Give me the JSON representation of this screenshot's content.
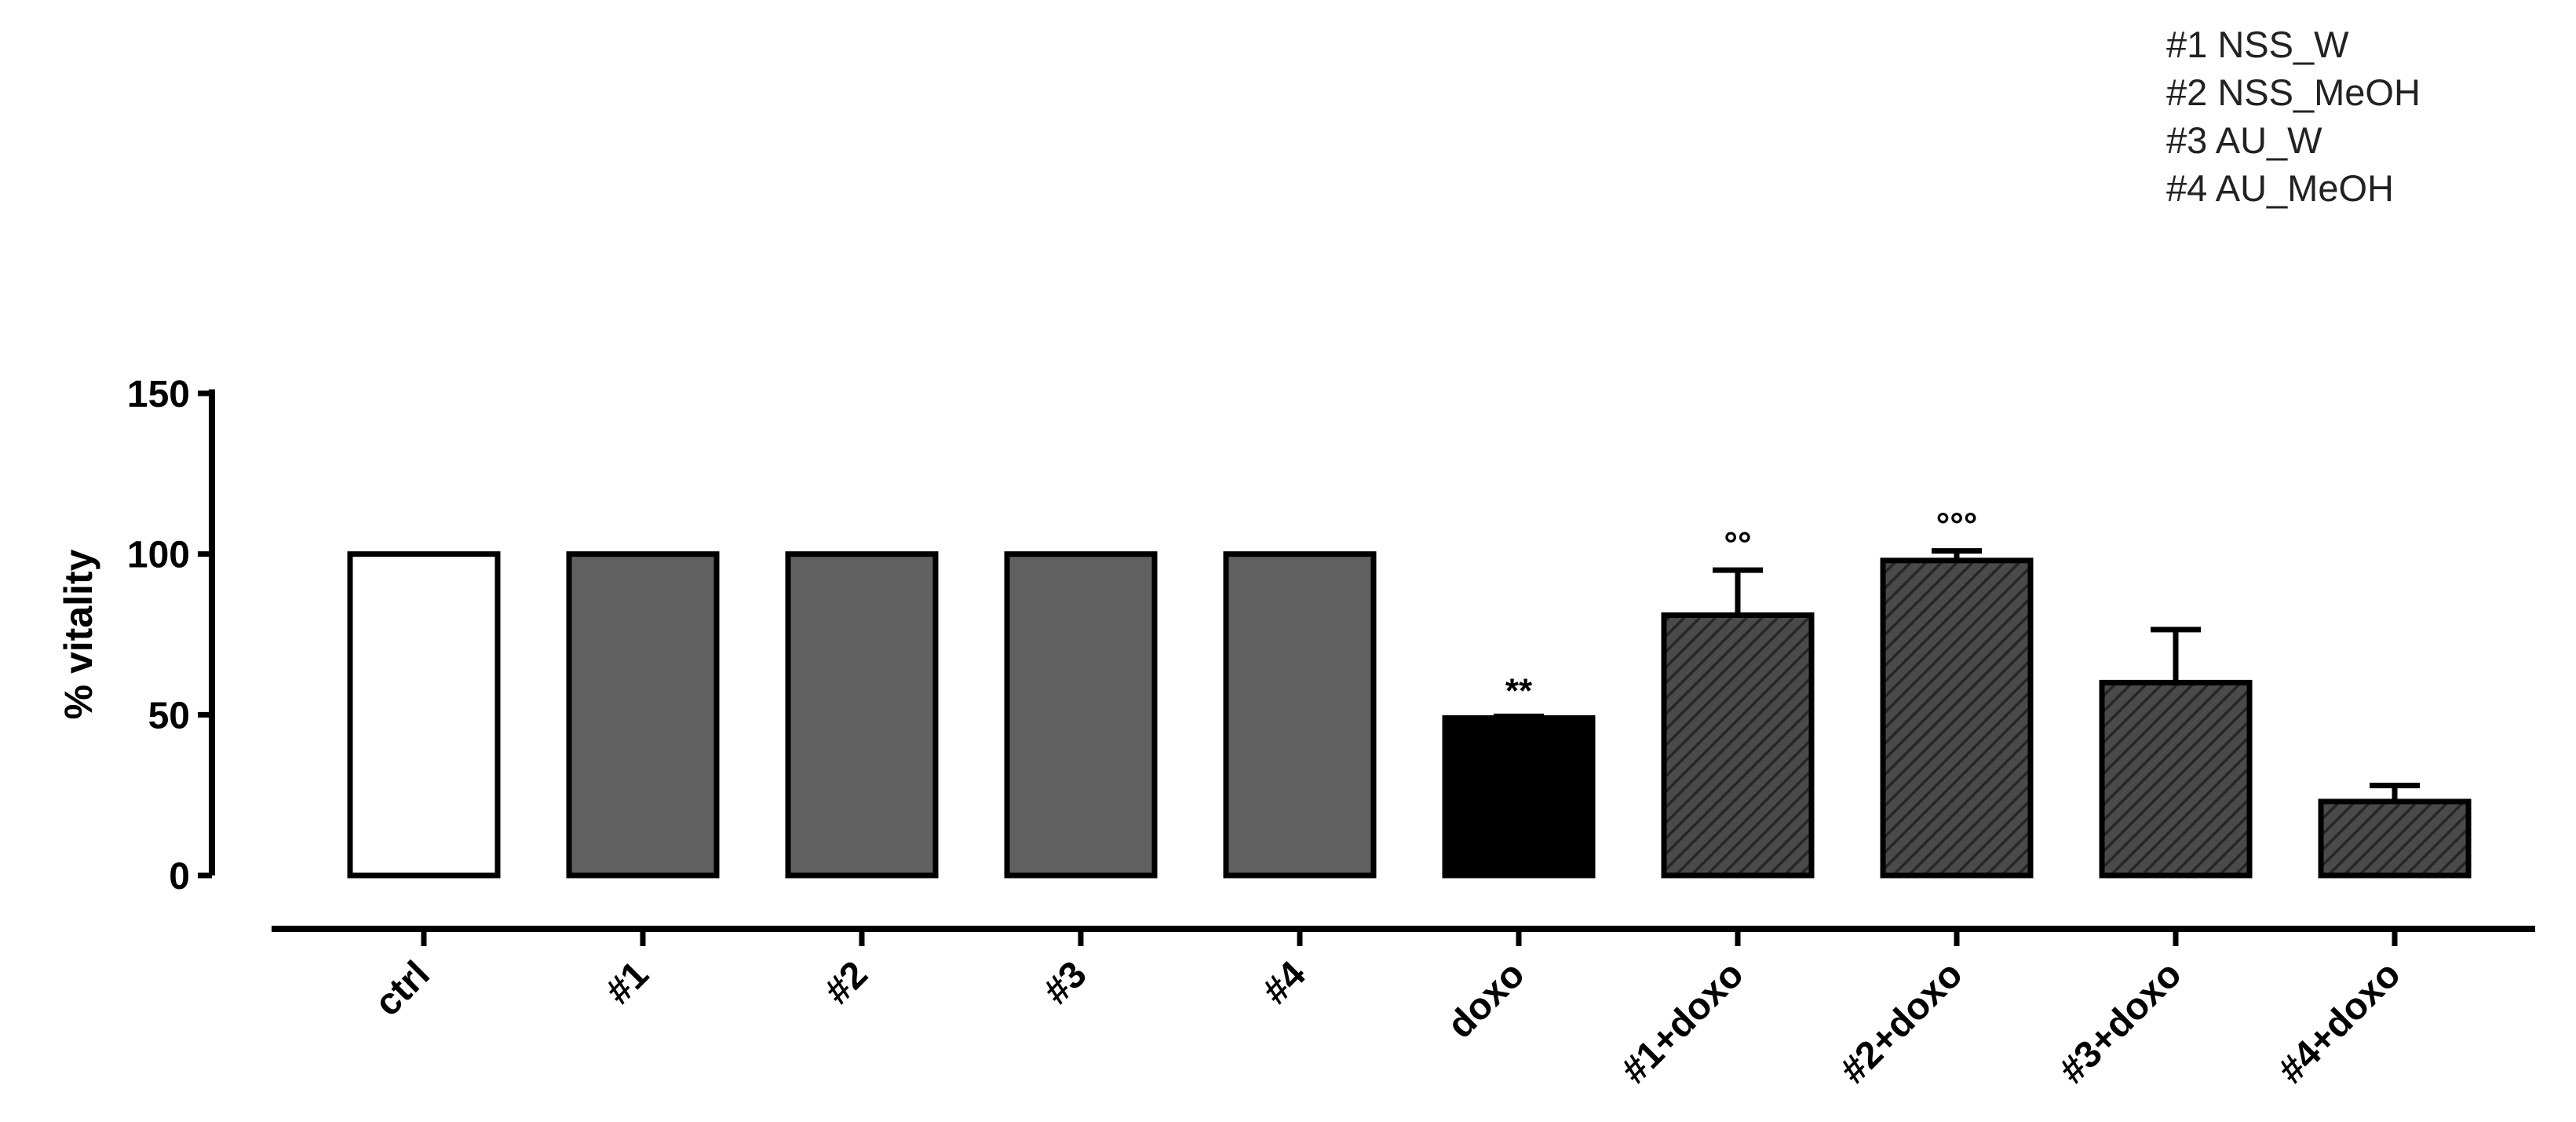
{
  "chart_data": {
    "type": "bar",
    "title": "",
    "xlabel": "",
    "ylabel": "% vitality",
    "ylim": [
      0,
      150
    ],
    "yticks": [
      0,
      50,
      100,
      150
    ],
    "grid": false,
    "legend_position": "top-right",
    "legend": [
      "#1 NSS_W",
      "#2 NSS_MeOH",
      "#3 AU_W",
      "#4 AU_MeOH"
    ],
    "categories": [
      "ctrl",
      "#1",
      "#2",
      "#3",
      "#4",
      "doxo",
      "#1+doxo",
      "#2+doxo",
      "#3+doxo",
      "#4+doxo"
    ],
    "values": [
      100,
      100,
      100,
      100,
      100,
      49,
      81,
      98,
      60,
      23
    ],
    "error_upper": [
      0,
      0,
      0,
      0,
      0,
      0.5,
      14,
      3,
      16.5,
      5
    ],
    "annotations": [
      "",
      "",
      "",
      "",
      "",
      "**",
      "°°",
      "°°°",
      "",
      ""
    ],
    "fills": [
      "white",
      "solid",
      "solid",
      "solid",
      "solid",
      "solid",
      "hatched",
      "hatched",
      "hatched",
      "hatched"
    ],
    "colors": {
      "ctrl_fill": "#ffffff",
      "extract_fill": "#606060",
      "doxo_fill": "#000000",
      "hatch_bg": "#4a4a4a",
      "hatch_line": "#2a2a2a",
      "stroke": "#000000"
    }
  }
}
